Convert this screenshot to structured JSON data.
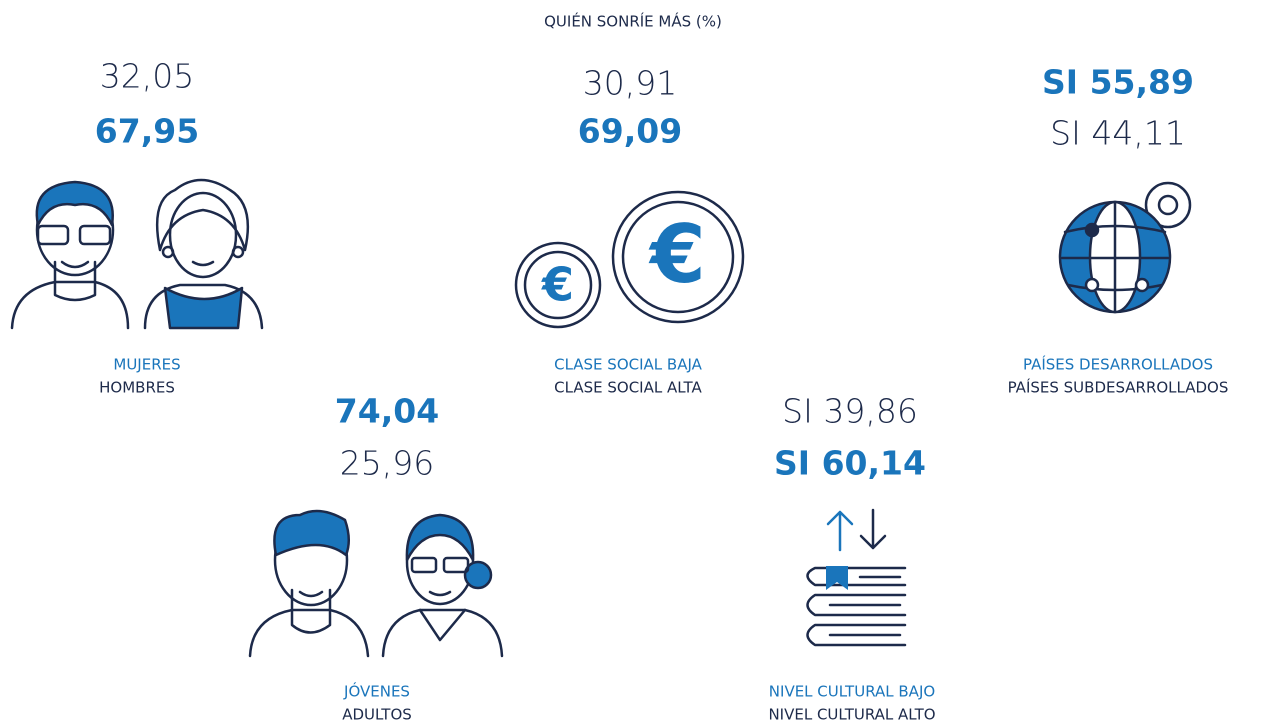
{
  "title": "QUIÉN SONRÍE MÁS (%)",
  "groups": [
    {
      "values": [
        "32,05",
        "67,95"
      ],
      "labels": [
        "MUJERES",
        "HOMBRES"
      ]
    },
    {
      "values": [
        "30,91",
        "69,09"
      ],
      "labels": [
        "CLASE SOCIAL BAJA",
        "CLASE SOCIAL ALTA"
      ]
    },
    {
      "values": [
        "SI 55,89",
        "SI 44,11"
      ],
      "labels": [
        "PAÍSES DESARROLLADOS",
        "PAÍSES SUBDESARROLLADOS"
      ]
    },
    {
      "values": [
        "74,04",
        "25,96"
      ],
      "labels": [
        "JÓVENES",
        "ADULTOS"
      ]
    },
    {
      "values": [
        "SI 39,86",
        "SI 60,14"
      ],
      "labels": [
        "NIVEL CULTURAL BAJO",
        "NIVEL CULTURAL ALTO"
      ]
    }
  ]
}
